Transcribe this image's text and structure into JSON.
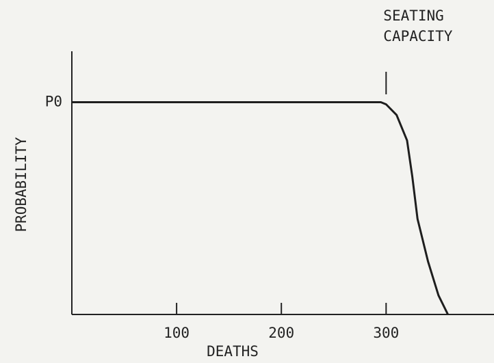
{
  "chart_data": {
    "type": "line",
    "xlabel": "DEATHS",
    "ylabel": "PROBABILITY",
    "x": [
      0,
      295,
      300,
      310,
      320,
      325,
      330,
      340,
      350,
      359
    ],
    "series": [
      {
        "name": "probability",
        "color": "#1e1e1e",
        "values": [
          1,
          1,
          0.99,
          0.94,
          0.82,
          0.65,
          0.45,
          0.25,
          0.09,
          0
        ]
      }
    ],
    "xlim": [
      0,
      403
    ],
    "xticks": [
      100,
      200,
      300
    ],
    "ylim": [
      0,
      1.24
    ],
    "yticks": [
      {
        "value": 1,
        "label": "P0"
      }
    ],
    "annotation": {
      "lines": [
        "SEATING",
        "CAPACITY"
      ],
      "x": 300
    }
  }
}
